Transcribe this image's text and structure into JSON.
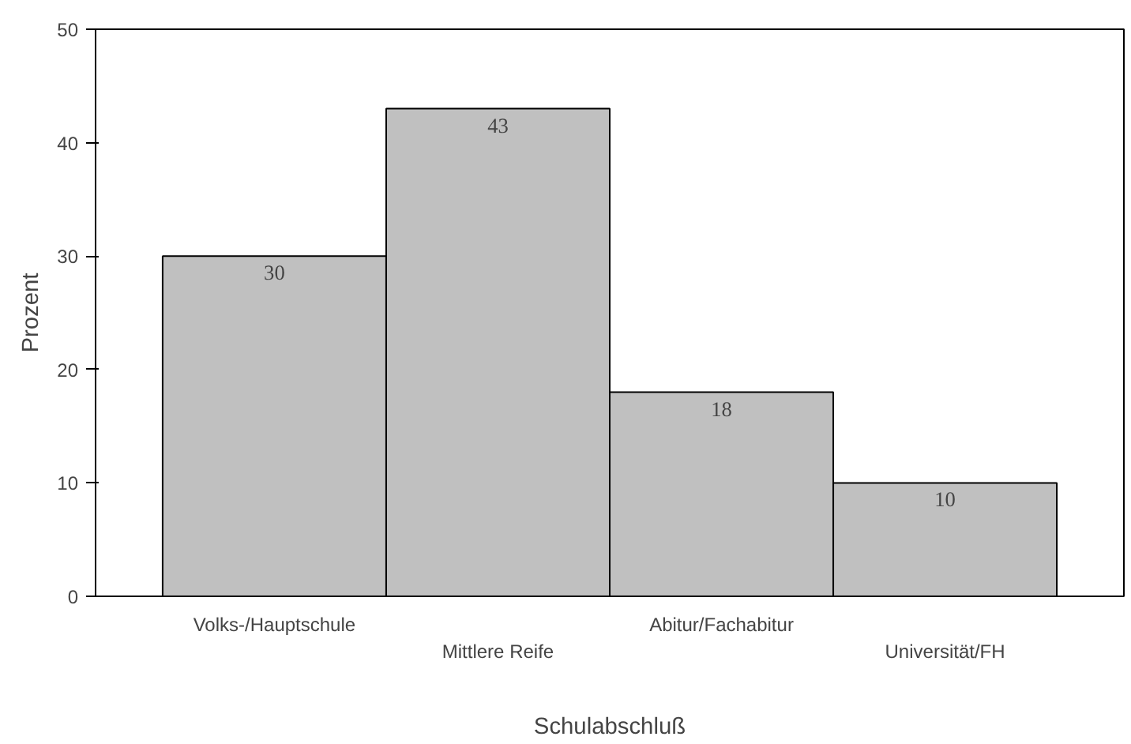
{
  "chart_data": {
    "type": "bar",
    "xlabel": "Schulabschluß",
    "ylabel": "Prozent",
    "categories": [
      "Volks-/Hauptschule",
      "Mittlere Reife",
      "Abitur/Fachabitur",
      "Universität/FH"
    ],
    "values": [
      30,
      43,
      18,
      10
    ],
    "color": "#c0c0c0",
    "ylim": [
      0,
      50
    ],
    "yticks": [
      0,
      10,
      20,
      30,
      40,
      50
    ],
    "grid": false,
    "data_labels": true
  }
}
